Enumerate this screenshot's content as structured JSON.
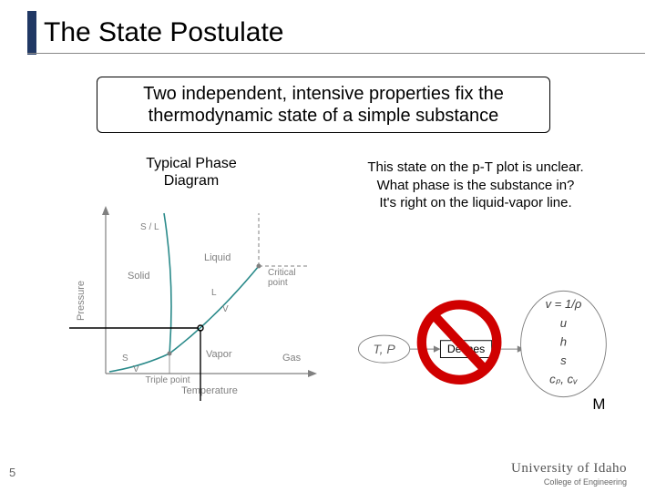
{
  "title": "The State Postulate",
  "statement": "Two independent, intensive properties fix the thermodynamic state of a simple substance",
  "phase_diagram_title": "Typical Phase\nDiagram",
  "state_unclear_text": "This state on the p-T plot is unclear.\nWhat phase is the substance in?\nIt's right on the liquid-vapor line.",
  "phase_diagram": {
    "y_label": "Pressure",
    "x_label": "Temperature",
    "regions": {
      "solid": "Solid",
      "liquid": "Liquid",
      "vapor": "Vapor",
      "gas": "Gas"
    },
    "boundaries": {
      "sl": "S / L",
      "lv": "L",
      "sv": "S",
      "v_below": "V",
      "v_right": "V"
    },
    "points": {
      "triple": "Triple point",
      "critical": "Critical point"
    },
    "axis_color": "#808080",
    "curve_color": "#2a8a8a",
    "text_color": "#808080",
    "font_size": 10,
    "label_font_size": 11,
    "indicator_line_color": "#000000"
  },
  "right_diagram": {
    "tp_oval": {
      "label": "T, P",
      "font_style": "italic",
      "border_color": "#808080",
      "text_color": "#808080"
    },
    "defines_box": {
      "label": "Defines",
      "border_color": "#000000"
    },
    "prohibit": {
      "ring_color": "#d00000",
      "ring_width": 10
    },
    "props_oval": {
      "border_color": "#808080",
      "text_color": "#404040",
      "lines": [
        "v = 1/ρ",
        "u",
        "h",
        "s",
        "cₚ, cᵥ"
      ],
      "m_label": "M"
    }
  },
  "page_number": "5",
  "footer": {
    "main": "University of Idaho",
    "sub": "College of Engineering"
  },
  "colors": {
    "title_accent": "#203864",
    "underline": "#888888",
    "bg": "#ffffff"
  }
}
